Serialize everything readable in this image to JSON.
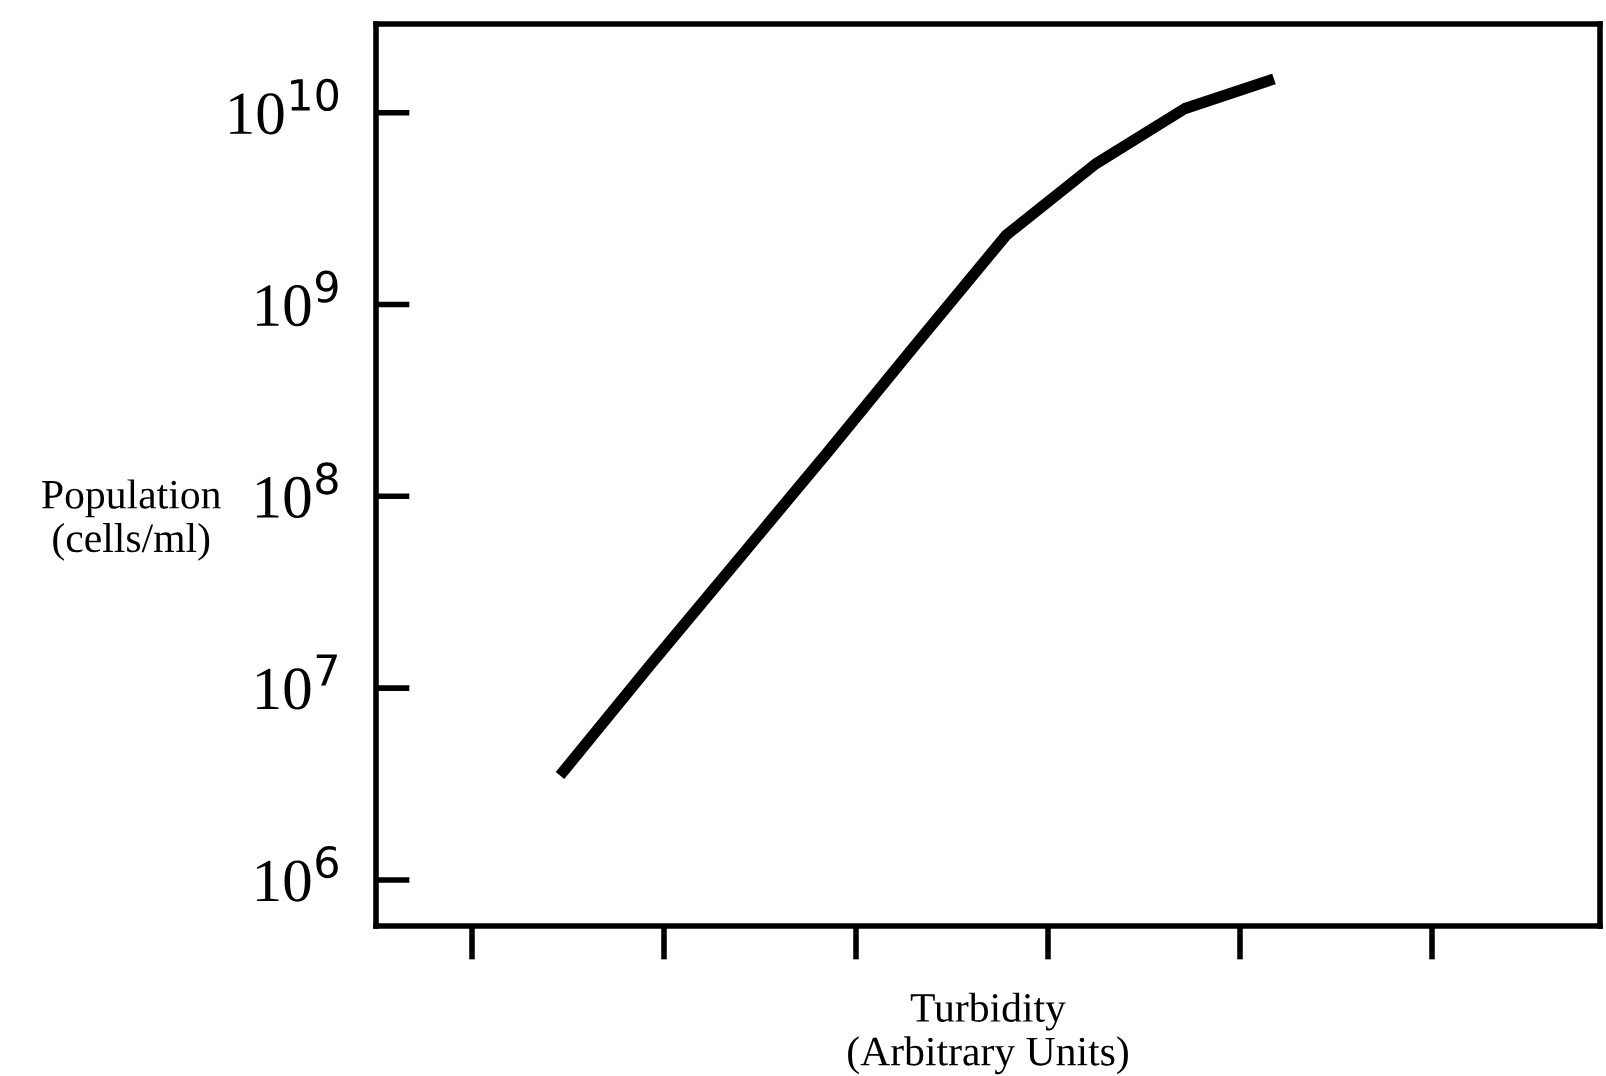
{
  "chart_data": {
    "type": "line",
    "xlabel": "Turbidity\n(Arbitrary Units)",
    "ylabel": "Population\n(cells/ml)",
    "categories": [
      null,
      null,
      null,
      null,
      null,
      null,
      null,
      null,
      null
    ],
    "series": [
      {
        "color": "#000000",
        "values": [
          3500000,
          13000000,
          47000000,
          170000000,
          630000000,
          2300000000,
          5400000000,
          10500000000,
          15000000000
        ]
      }
    ],
    "log": "y",
    "ylim": [
      575000,
      29000000000
    ],
    "yticks": [
      {
        "value": 1000000,
        "label": "10$^{6}$"
      },
      {
        "value": 10000000,
        "label": "10$^{7}$"
      },
      {
        "value": 100000000,
        "label": "10$^{8}$"
      },
      {
        "value": 1000000000,
        "label": "10$^{9}$"
      },
      {
        "value": 10000000000,
        "label": "10$^{10}$"
      }
    ],
    "grid": false,
    "legend": false,
    "marker": "none",
    "line_style": "solid"
  }
}
